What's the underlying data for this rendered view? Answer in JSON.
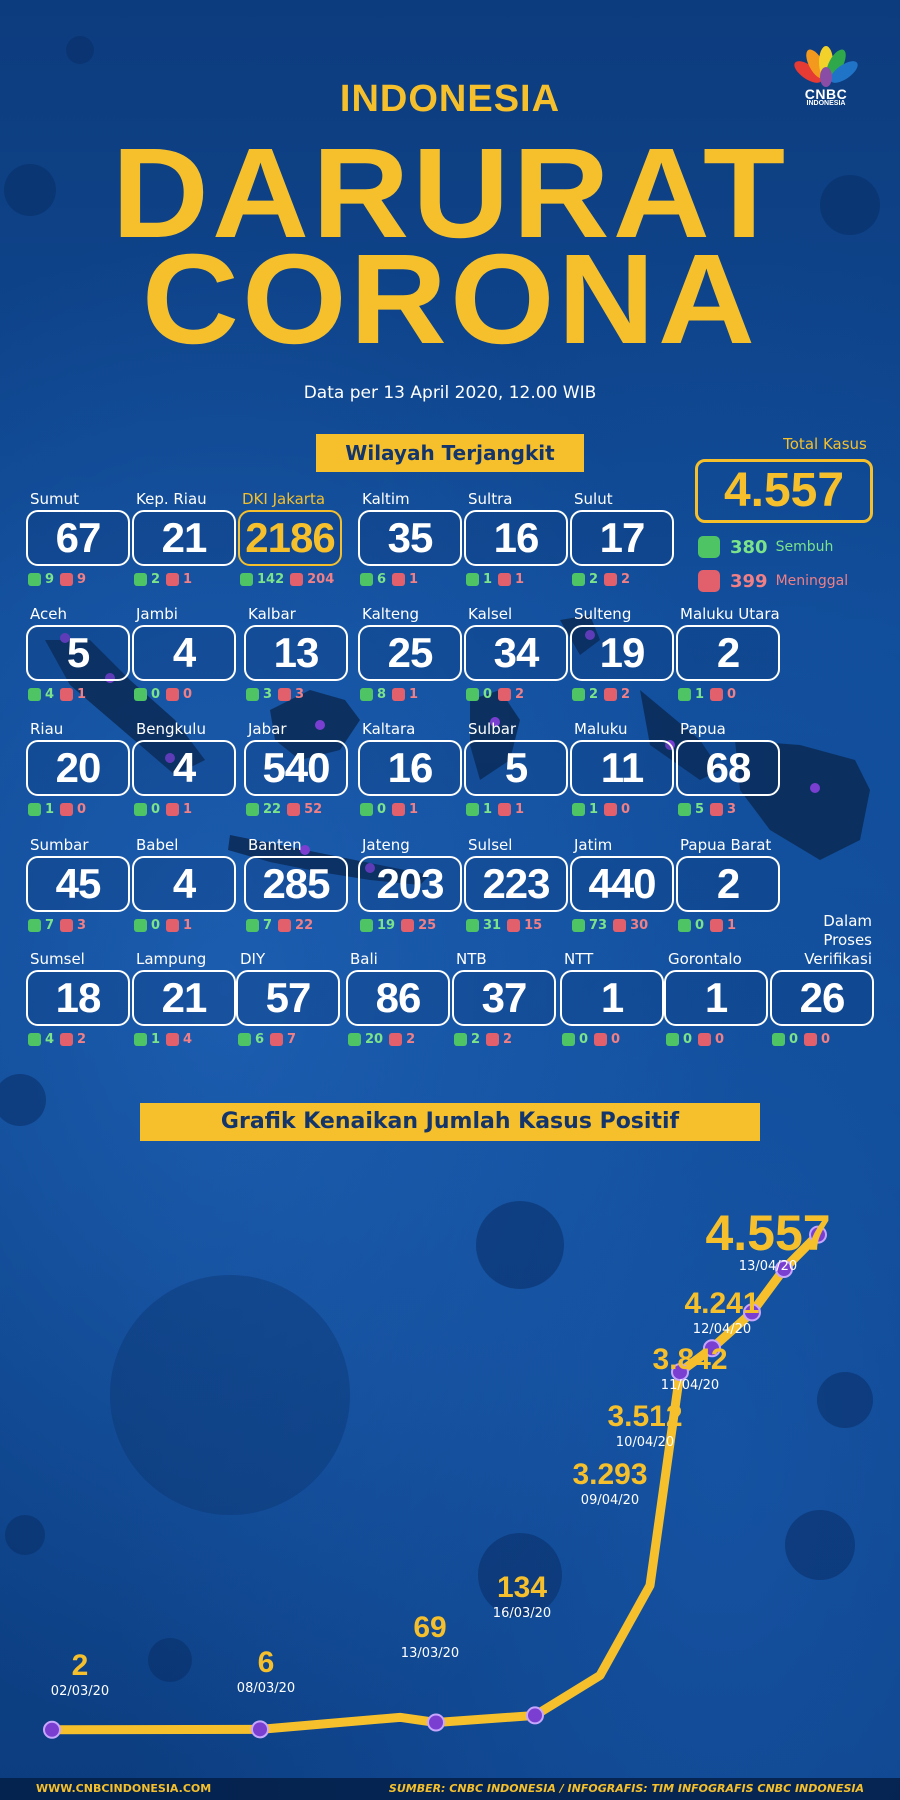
{
  "header": {
    "logo_text": "CNBC",
    "logo_sub": "INDONESIA",
    "country": "INDONESIA",
    "title_line1": "DARURAT",
    "title_line2": "CORONA",
    "data_date": "Data per 13 April 2020, 12.00 WIB"
  },
  "summary": {
    "section_label": "Wilayah Terjangkit",
    "total_label": "Total Kasus",
    "total_value": "4.557",
    "recovered_value": "380",
    "recovered_label": "Sembuh",
    "deaths_value": "399",
    "deaths_label": "Meninggal"
  },
  "provinces": [
    {
      "name": "Sumut",
      "cases": "67",
      "recovered": "9",
      "deaths": "9"
    },
    {
      "name": "Kep. Riau",
      "cases": "21",
      "recovered": "2",
      "deaths": "1"
    },
    {
      "name": "DKI Jakarta",
      "cases": "2186",
      "recovered": "142",
      "deaths": "204",
      "highlight": true
    },
    {
      "name": "Kaltim",
      "cases": "35",
      "recovered": "6",
      "deaths": "1"
    },
    {
      "name": "Sultra",
      "cases": "16",
      "recovered": "1",
      "deaths": "1"
    },
    {
      "name": "Sulut",
      "cases": "17",
      "recovered": "2",
      "deaths": "2"
    },
    {
      "name": "Aceh",
      "cases": "5",
      "recovered": "4",
      "deaths": "1"
    },
    {
      "name": "Jambi",
      "cases": "4",
      "recovered": "0",
      "deaths": "0"
    },
    {
      "name": "Kalbar",
      "cases": "13",
      "recovered": "3",
      "deaths": "3"
    },
    {
      "name": "Kalteng",
      "cases": "25",
      "recovered": "8",
      "deaths": "1"
    },
    {
      "name": "Kalsel",
      "cases": "34",
      "recovered": "0",
      "deaths": "2"
    },
    {
      "name": "Sulteng",
      "cases": "19",
      "recovered": "2",
      "deaths": "2"
    },
    {
      "name": "Maluku Utara",
      "cases": "2",
      "recovered": "1",
      "deaths": "0"
    },
    {
      "name": "Riau",
      "cases": "20",
      "recovered": "1",
      "deaths": "0"
    },
    {
      "name": "Bengkulu",
      "cases": "4",
      "recovered": "0",
      "deaths": "1"
    },
    {
      "name": "Jabar",
      "cases": "540",
      "recovered": "22",
      "deaths": "52"
    },
    {
      "name": "Kaltara",
      "cases": "16",
      "recovered": "0",
      "deaths": "1"
    },
    {
      "name": "Sulbar",
      "cases": "5",
      "recovered": "1",
      "deaths": "1"
    },
    {
      "name": "Maluku",
      "cases": "11",
      "recovered": "1",
      "deaths": "0"
    },
    {
      "name": "Papua",
      "cases": "68",
      "recovered": "5",
      "deaths": "3"
    },
    {
      "name": "Sumbar",
      "cases": "45",
      "recovered": "7",
      "deaths": "3"
    },
    {
      "name": "Babel",
      "cases": "4",
      "recovered": "0",
      "deaths": "1"
    },
    {
      "name": "Banten",
      "cases": "285",
      "recovered": "7",
      "deaths": "22"
    },
    {
      "name": "Jateng",
      "cases": "203",
      "recovered": "19",
      "deaths": "25"
    },
    {
      "name": "Sulsel",
      "cases": "223",
      "recovered": "31",
      "deaths": "15"
    },
    {
      "name": "Jatim",
      "cases": "440",
      "recovered": "73",
      "deaths": "30"
    },
    {
      "name": "Papua Barat",
      "cases": "2",
      "recovered": "0",
      "deaths": "1"
    },
    {
      "name": "Sumsel",
      "cases": "18",
      "recovered": "4",
      "deaths": "2"
    },
    {
      "name": "Lampung",
      "cases": "21",
      "recovered": "1",
      "deaths": "4"
    },
    {
      "name": "DIY",
      "cases": "57",
      "recovered": "6",
      "deaths": "7"
    },
    {
      "name": "Bali",
      "cases": "86",
      "recovered": "20",
      "deaths": "2"
    },
    {
      "name": "NTB",
      "cases": "37",
      "recovered": "2",
      "deaths": "2"
    },
    {
      "name": "NTT",
      "cases": "1",
      "recovered": "0",
      "deaths": "0"
    },
    {
      "name": "Gorontalo",
      "cases": "1",
      "recovered": "0",
      "deaths": "0"
    },
    {
      "name": "Dalam Proses Verifikasi",
      "cases": "26",
      "recovered": "0",
      "deaths": "0"
    }
  ],
  "chart_section_label": "Grafik Kenaikan Jumlah Kasus Positif",
  "chart_data": {
    "type": "line",
    "title": "Grafik Kenaikan Jumlah Kasus Positif",
    "xlabel": "",
    "ylabel": "",
    "points": [
      {
        "date": "02/03/20",
        "value": 2,
        "label": "2"
      },
      {
        "date": "08/03/20",
        "value": 6,
        "label": "6"
      },
      {
        "date": "13/03/20",
        "value": 69,
        "label": "69"
      },
      {
        "date": "16/03/20",
        "value": 134,
        "label": "134"
      },
      {
        "date": "09/04/20",
        "value": 3293,
        "label": "3.293"
      },
      {
        "date": "10/04/20",
        "value": 3512,
        "label": "3.512"
      },
      {
        "date": "11/04/20",
        "value": 3842,
        "label": "3.842"
      },
      {
        "date": "12/04/20",
        "value": 4241,
        "label": "4.241"
      },
      {
        "date": "13/04/20",
        "value": 4557,
        "label": "4.557"
      }
    ]
  },
  "footer": {
    "website": "WWW.CNBCINDONESIA.COM",
    "source": "SUMBER: CNBC INDONESIA / INFOGRAFIS: TIM INFOGRAFIS CNBC INDONESIA"
  },
  "colors": {
    "accent": "#f5c02c",
    "background": "#0d468e",
    "recovered": "#4fc465",
    "deaths": "#e2606b"
  }
}
